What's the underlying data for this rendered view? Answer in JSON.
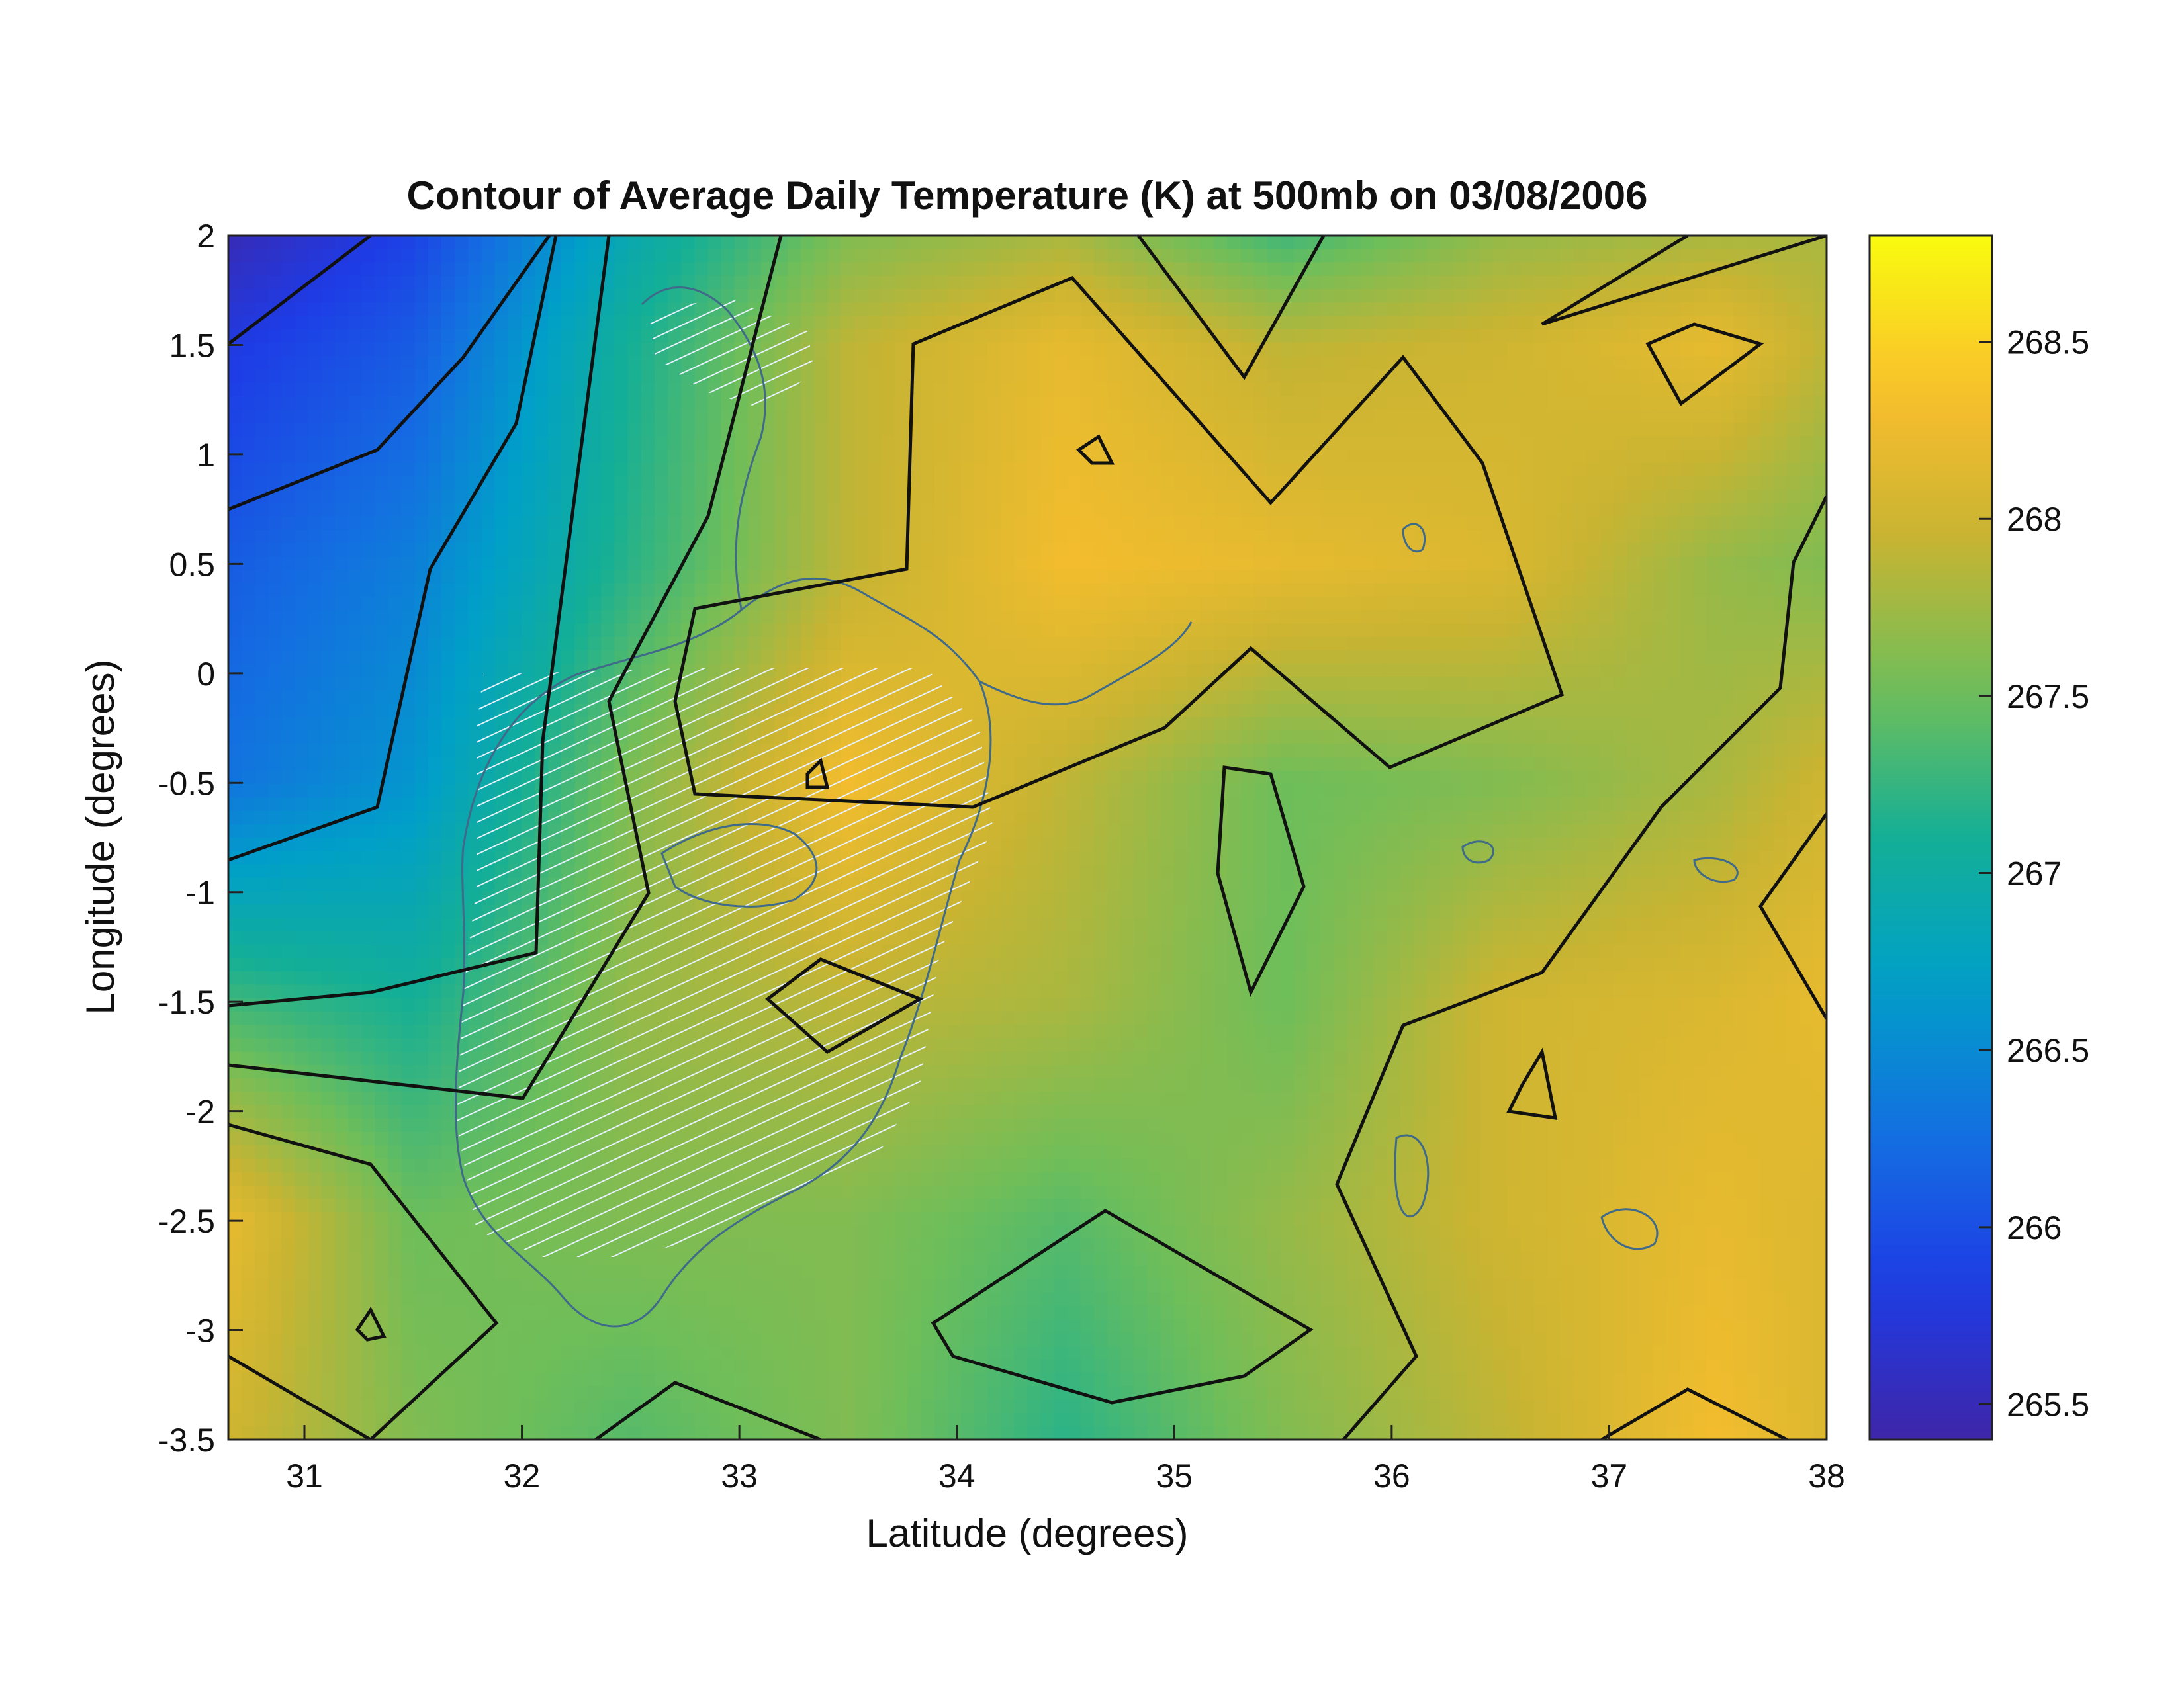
{
  "chart_data": {
    "type": "heatmap",
    "title": "Contour of Average Daily Temperature (K) at 500mb on 03/08/2006",
    "xlabel": "Latitude (degrees)",
    "ylabel": "Longitude (degrees)",
    "xlim": [
      30.65,
      38.0
    ],
    "ylim": [
      -3.5,
      2.0
    ],
    "xticks": [
      "31",
      "32",
      "33",
      "34",
      "35",
      "36",
      "37",
      "38"
    ],
    "xtick_values": [
      31,
      32,
      33,
      34,
      35,
      36,
      37,
      38
    ],
    "yticks": [
      "2",
      "1.5",
      "1",
      "0.5",
      "0",
      "-0.5",
      "-1",
      "-1.5",
      "-2",
      "-2.5",
      "-3",
      "-3.5"
    ],
    "ytick_values": [
      2,
      1.5,
      1,
      0.5,
      0,
      -0.5,
      -1,
      -1.5,
      -2,
      -2.5,
      -3,
      -3.5
    ],
    "colorbar": {
      "ticks": [
        "265.5",
        "266",
        "266.5",
        "267",
        "267.5",
        "268",
        "268.5"
      ],
      "tick_values": [
        265.5,
        266,
        266.5,
        267,
        267.5,
        268,
        268.5
      ],
      "range": [
        265.4,
        268.8
      ],
      "colormap": "parula"
    },
    "grid_x": [
      30.65,
      31.5,
      32.5,
      33.5,
      34.5,
      35.5,
      36.5,
      37.5,
      38.0
    ],
    "grid_y": [
      2.0,
      1.5,
      0.5,
      -0.5,
      -1.5,
      -2.5,
      -3.5
    ],
    "values": [
      [
        265.5,
        265.9,
        266.9,
        267.6,
        267.8,
        267.3,
        267.7,
        267.8,
        267.8
      ],
      [
        265.8,
        266.1,
        267.1,
        267.9,
        268.2,
        267.9,
        268.0,
        268.2,
        267.9
      ],
      [
        266.1,
        266.4,
        267.2,
        267.9,
        268.3,
        268.2,
        268.1,
        267.7,
        267.6
      ],
      [
        266.3,
        266.6,
        267.6,
        268.3,
        267.9,
        267.5,
        267.6,
        267.8,
        268.0
      ],
      [
        267.3,
        267.1,
        267.7,
        267.9,
        267.8,
        267.5,
        268.0,
        268.1,
        268.2
      ],
      [
        268.2,
        267.5,
        267.6,
        267.6,
        267.4,
        267.7,
        268.0,
        268.2,
        268.1
      ],
      [
        268.0,
        267.6,
        267.4,
        267.6,
        267.2,
        267.6,
        267.9,
        268.3,
        268.1
      ]
    ]
  }
}
